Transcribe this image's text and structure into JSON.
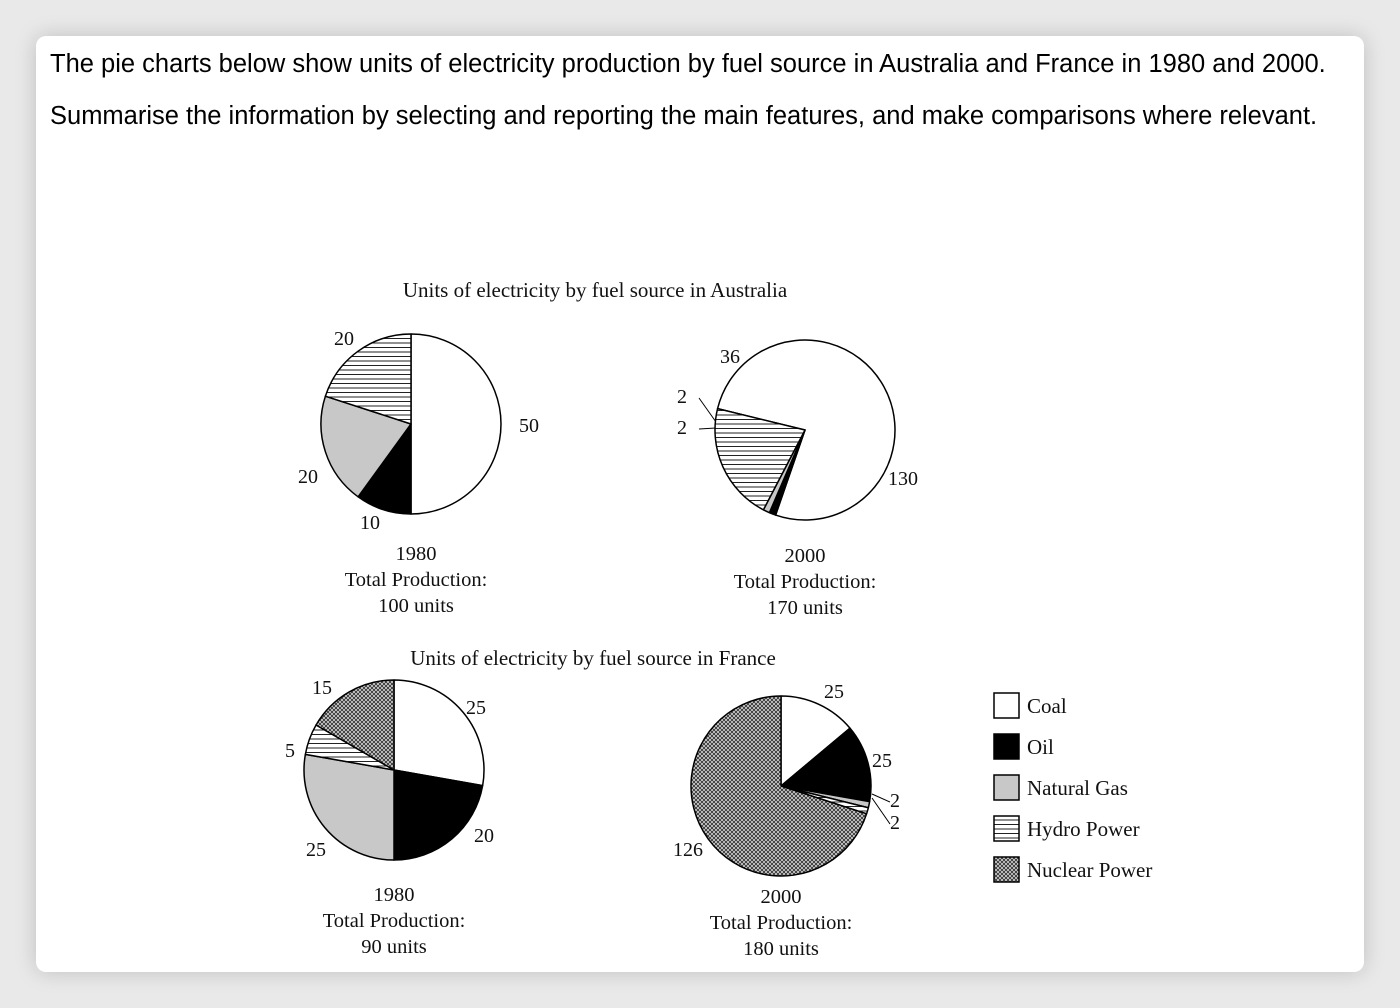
{
  "prompt": {
    "line1": "The pie charts below show units of electricity production by fuel source in Australia and France in 1980 and 2000.",
    "line2": "Summarise the information by selecting and reporting the main features, and make comparisons where relevant."
  },
  "colors": {
    "coal": "#ffffff",
    "oil": "#000000",
    "natural_gas": "#c8c8c8",
    "hydro_power": "hatch-horizontal",
    "nuclear_power": "crosshatch",
    "card_bg": "#ffffff",
    "page_bg": "#e9e9e9"
  },
  "legend": [
    {
      "key": "coal",
      "label": "Coal"
    },
    {
      "key": "oil",
      "label": "Oil"
    },
    {
      "key": "natural_gas",
      "label": "Natural Gas"
    },
    {
      "key": "hydro_power",
      "label": "Hydro Power"
    },
    {
      "key": "nuclear_power",
      "label": "Nuclear Power"
    }
  ],
  "chart_data": [
    {
      "type": "pie",
      "title": "Units of electricity by fuel source in Australia",
      "year": "1980",
      "total_label": "Total Production:",
      "total_value": "100 units",
      "slices": [
        {
          "key": "coal",
          "name": "Coal",
          "value": 50,
          "label": "50"
        },
        {
          "key": "oil",
          "name": "Oil",
          "value": 10,
          "label": "10"
        },
        {
          "key": "natural_gas",
          "name": "Natural Gas",
          "value": 20,
          "label": "20"
        },
        {
          "key": "hydro_power",
          "name": "Hydro Power",
          "value": 20,
          "label": "20"
        }
      ]
    },
    {
      "type": "pie",
      "title": "",
      "year": "2000",
      "total_label": "Total Production:",
      "total_value": "170 units",
      "slices": [
        {
          "key": "coal",
          "name": "Coal",
          "value": 130,
          "label": "130"
        },
        {
          "key": "oil",
          "name": "Oil",
          "value": 2,
          "label": "2"
        },
        {
          "key": "natural_gas",
          "name": "Natural Gas",
          "value": 2,
          "label": "2"
        },
        {
          "key": "hydro_power",
          "name": "Hydro Power",
          "value": 36,
          "label": "36"
        }
      ]
    },
    {
      "type": "pie",
      "title": "Units of electricity by fuel source in France",
      "year": "1980",
      "total_label": "Total Production:",
      "total_value": "90 units",
      "slices": [
        {
          "key": "coal",
          "name": "Coal",
          "value": 25,
          "label": "25"
        },
        {
          "key": "oil",
          "name": "Oil",
          "value": 20,
          "label": "20"
        },
        {
          "key": "natural_gas",
          "name": "Natural Gas",
          "value": 25,
          "label": "25"
        },
        {
          "key": "hydro_power",
          "name": "Hydro Power",
          "value": 5,
          "label": "5"
        },
        {
          "key": "nuclear_power",
          "name": "Nuclear Power",
          "value": 15,
          "label": "15"
        }
      ]
    },
    {
      "type": "pie",
      "title": "",
      "year": "2000",
      "total_label": "Total Production:",
      "total_value": "180 units",
      "slices": [
        {
          "key": "coal",
          "name": "Coal",
          "value": 25,
          "label": "25"
        },
        {
          "key": "oil",
          "name": "Oil",
          "value": 25,
          "label": "25"
        },
        {
          "key": "natural_gas",
          "name": "Natural Gas",
          "value": 2,
          "label": "2"
        },
        {
          "key": "hydro_power",
          "name": "Hydro Power",
          "value": 2,
          "label": "2"
        },
        {
          "key": "nuclear_power",
          "name": "Nuclear Power",
          "value": 126,
          "label": "126"
        }
      ]
    }
  ]
}
